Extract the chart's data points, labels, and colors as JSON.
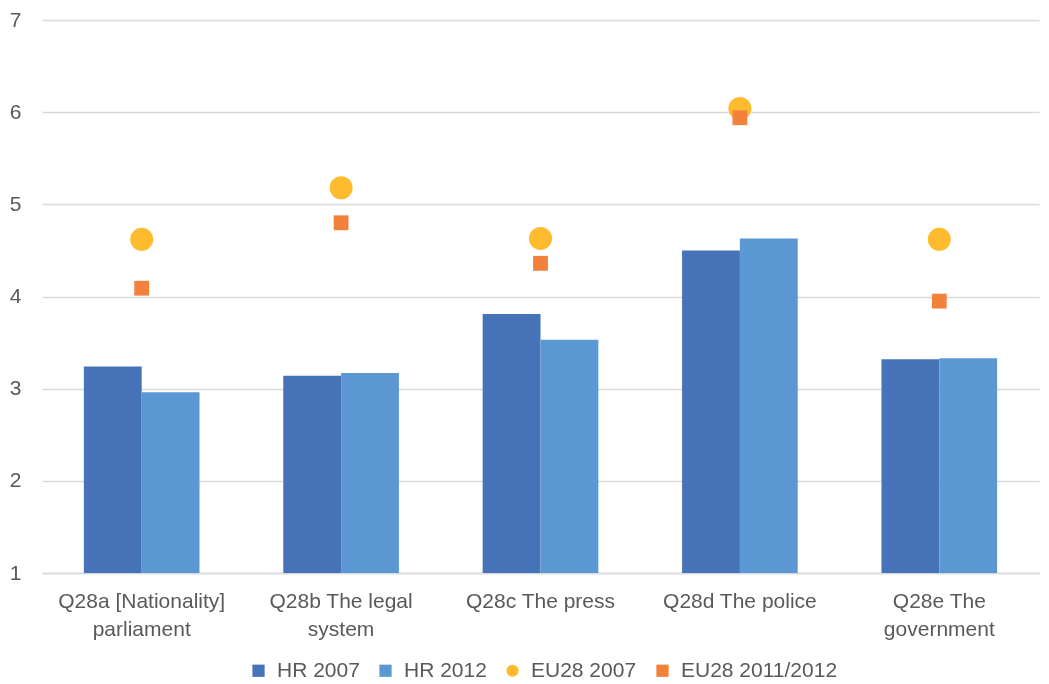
{
  "chart_data": {
    "type": "bar",
    "categories": [
      "Q28a [Nationality] parliament",
      "Q28b The legal system",
      "Q28c The press",
      "Q28d The police",
      "Q28e The government"
    ],
    "series": [
      {
        "name": "HR 2007",
        "color": "#4672b8",
        "values": [
          3.24,
          3.14,
          3.81,
          4.5,
          3.32
        ]
      },
      {
        "name": "HR 2012",
        "color": "#5b98d3",
        "values": [
          2.96,
          3.17,
          3.53,
          4.63,
          3.33
        ]
      },
      {
        "name": "EU28 2007",
        "type": "scatter",
        "marker": "circle",
        "color": "#fdbb2d",
        "values": [
          4.62,
          5.18,
          4.63,
          6.04,
          4.62
        ]
      },
      {
        "name": "EU28 2011/2012",
        "type": "scatter",
        "marker": "square",
        "color": "#f2813b",
        "values": [
          4.09,
          4.8,
          4.36,
          5.94,
          3.95
        ]
      }
    ],
    "ylim": [
      1,
      7
    ],
    "yticks": [
      1,
      2,
      3,
      4,
      5,
      6,
      7
    ],
    "grid": "y",
    "legend": "bottom"
  }
}
